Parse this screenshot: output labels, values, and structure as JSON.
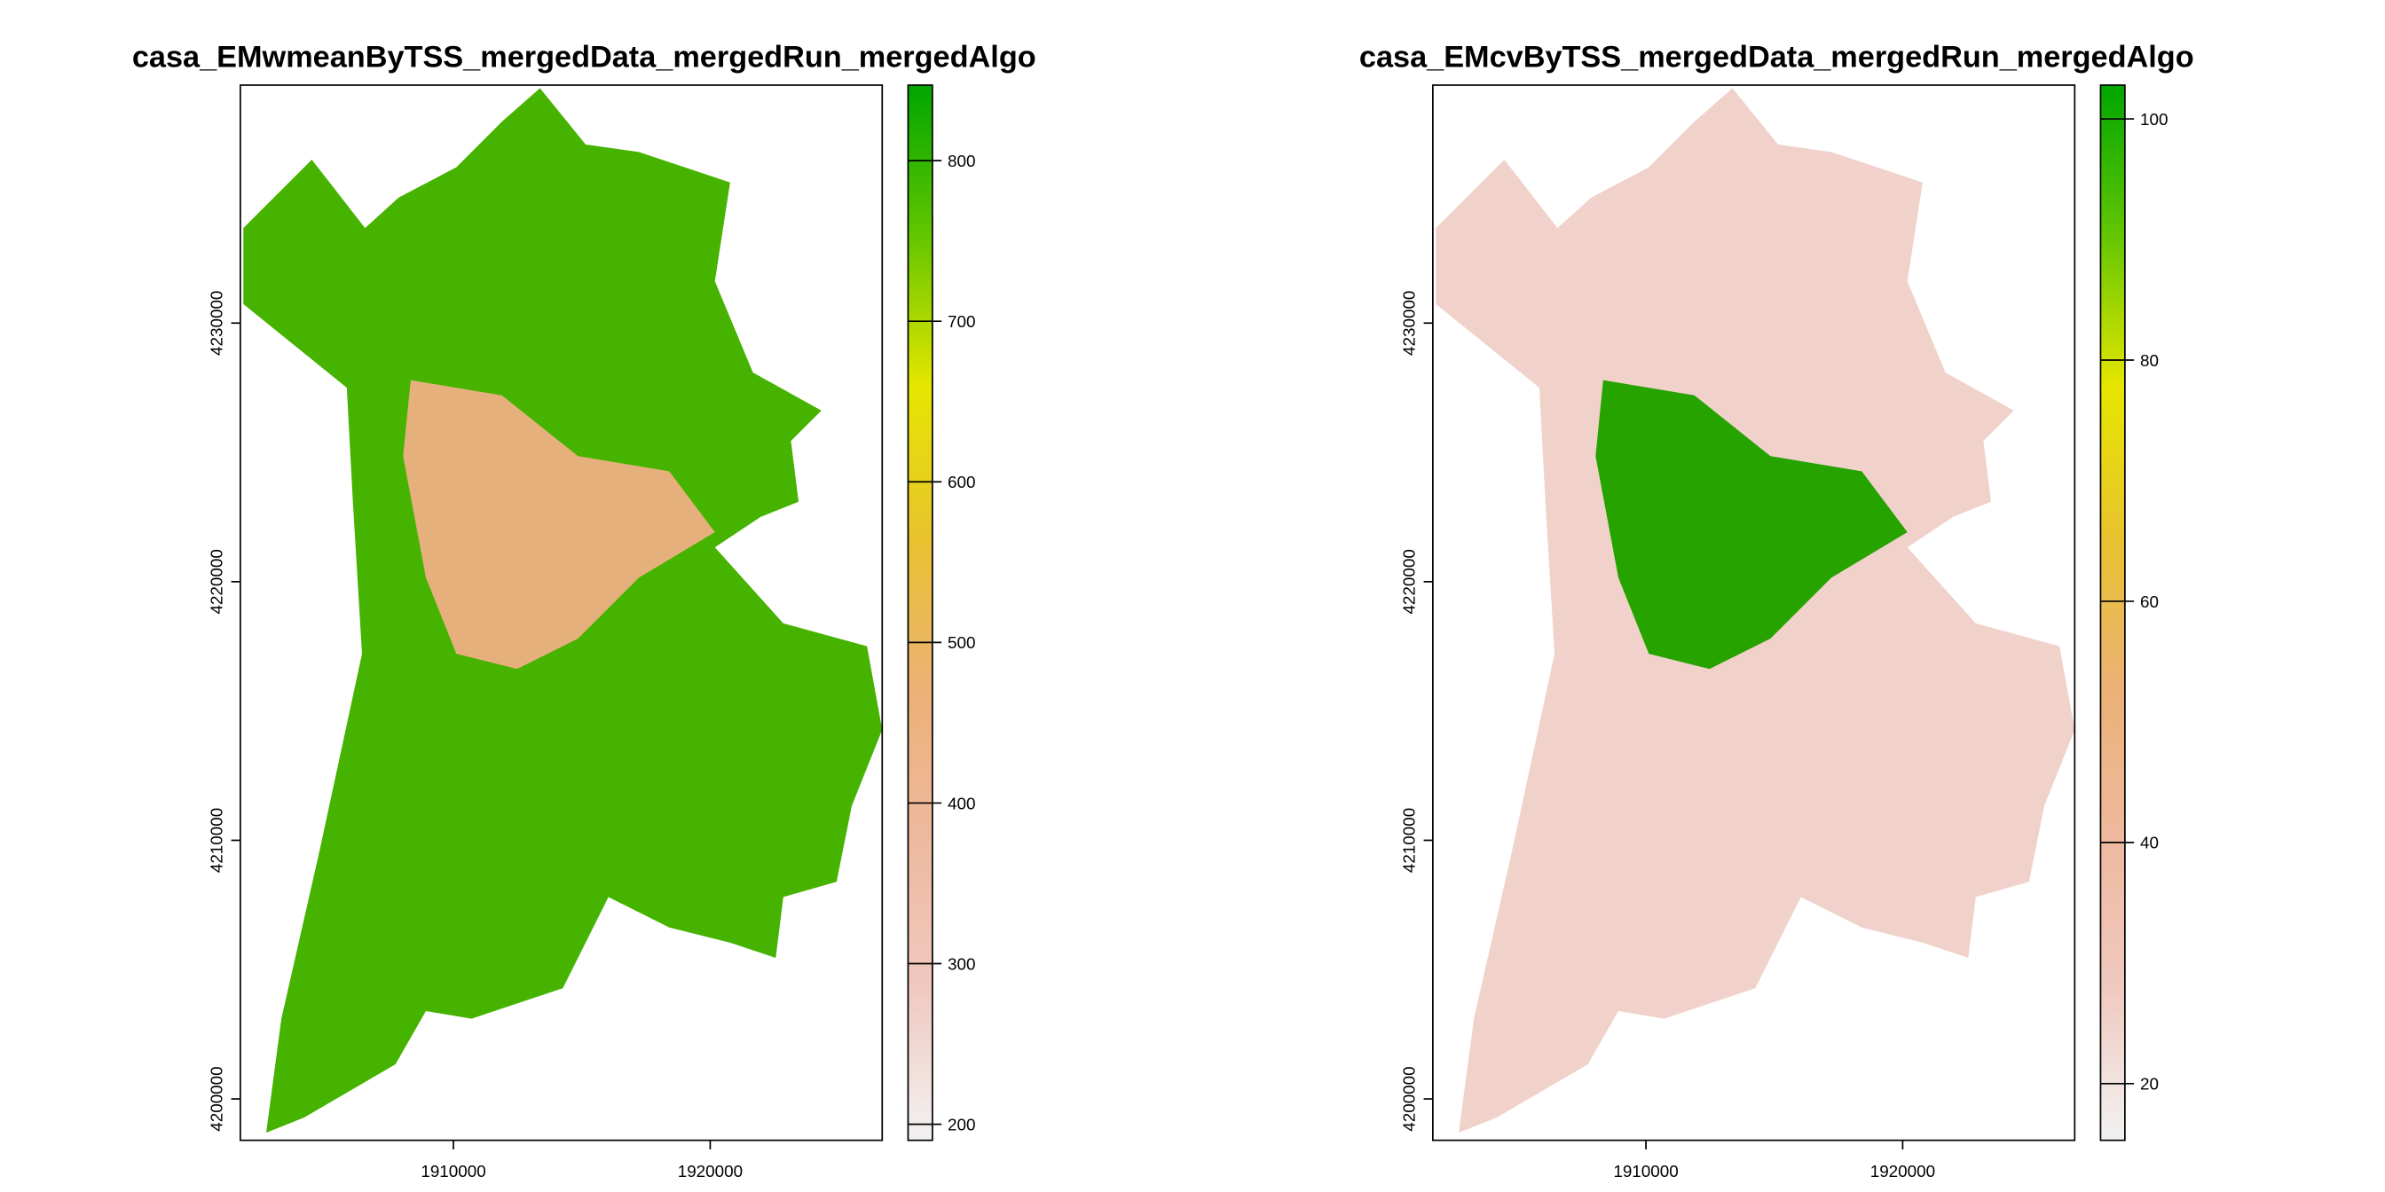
{
  "chart_data": [
    {
      "type": "raster",
      "title": "casa_EMwmeanByTSS_mergedData_mergedRun_mergedAlgo",
      "xlim": [
        1901700,
        1926700
      ],
      "ylim": [
        4198400,
        4239200
      ],
      "xticks": [
        1910000,
        1920000
      ],
      "yticks": [
        4200000,
        4210000,
        4220000,
        4230000
      ],
      "colorbar": {
        "lim": [
          190,
          847
        ],
        "ticks": [
          200,
          300,
          400,
          500,
          600,
          700,
          800
        ],
        "colors": [
          "#f2f2f2",
          "#f0c9c0",
          "#eeb99f",
          "#ecb176",
          "#e8c32e",
          "#e6e600",
          "#63c600",
          "#00a600"
        ]
      }
    },
    {
      "type": "raster",
      "title": "casa_EMcvByTSS_mergedData_mergedRun_mergedAlgo",
      "xlim": [
        1901700,
        1926700
      ],
      "ylim": [
        4198400,
        4239200
      ],
      "xticks": [
        1910000,
        1920000
      ],
      "yticks": [
        4200000,
        4210000,
        4220000,
        4230000
      ],
      "colorbar": {
        "lim": [
          15.3,
          102.8
        ],
        "ticks": [
          20,
          40,
          60,
          80,
          100
        ],
        "colors": [
          "#f2f2f2",
          "#f0c9c0",
          "#eeb99f",
          "#ecb176",
          "#e8c32e",
          "#e6e600",
          "#63c600",
          "#00a600"
        ]
      }
    }
  ]
}
